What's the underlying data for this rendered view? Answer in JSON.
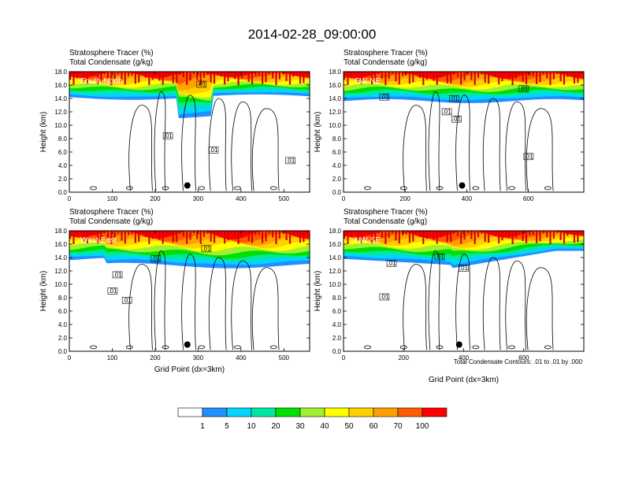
{
  "main_title": "2014-02-28_09:00:00",
  "colorbar": {
    "labels": [
      "1",
      "5",
      "10",
      "20",
      "30",
      "40",
      "50",
      "60",
      "70",
      "100"
    ],
    "colors": [
      "#ffffff",
      "#1e90ff",
      "#00d4ff",
      "#00e8a0",
      "#00e000",
      "#a0f030",
      "#ffff00",
      "#ffd000",
      "#ffa000",
      "#ff5a00",
      "#ff0000"
    ]
  },
  "contour_note": "Total Condensate Contours: .01 to .01 by .000",
  "chart_data": [
    {
      "type": "heatmap",
      "name_label": "South-North",
      "title_line1": "Stratosphere Tracer   (%)",
      "title_line2": "Total Condensate   (g/kg)",
      "ylabel": "Height (km)",
      "xlabel": "",
      "xlim": [
        0,
        560
      ],
      "ylim": [
        0,
        18
      ],
      "xticks": [
        "0",
        "100",
        "200",
        "300",
        "400",
        "500"
      ],
      "xtick_values": [
        0,
        100,
        200,
        300,
        400,
        500
      ],
      "yticks": [
        "0.0",
        "2.0",
        "4.0",
        "6.0",
        "8.0",
        "10.0",
        "12.0",
        "14.0",
        "16.0",
        "18.0"
      ],
      "contour_labels": [
        ".01",
        ".01",
        ".01",
        ".01"
      ],
      "contour_label_points": [
        [
          55,
          16
        ],
        [
          41,
          8.3
        ],
        [
          60,
          6.2
        ],
        [
          92,
          4.6
        ]
      ],
      "marker_point": [
        275,
        1.0
      ]
    },
    {
      "type": "heatmap",
      "name_label": "SW-NE",
      "title_line1": "Stratosphere Tracer   (%)",
      "title_line2": "Total Condensate   (g/kg)",
      "ylabel": "Height (km)",
      "xlabel": "",
      "xlim": [
        0,
        780
      ],
      "ylim": [
        0,
        18
      ],
      "xticks": [
        "0",
        "200",
        "400",
        "600"
      ],
      "xtick_values": [
        0,
        200,
        400,
        600
      ],
      "yticks": [
        "0.0",
        "2.0",
        "4.0",
        "6.0",
        "8.0",
        "10.0",
        "12.0",
        "14.0",
        "16.0",
        "18.0"
      ],
      "contour_labels": [
        ".01",
        ".01",
        ".01",
        ".01",
        ".01",
        ".01"
      ],
      "contour_label_points": [
        [
          17,
          14.1
        ],
        [
          46,
          13.8
        ],
        [
          43,
          11.9
        ],
        [
          47,
          10.8
        ],
        [
          75,
          15.3
        ],
        [
          77,
          5.2
        ]
      ],
      "marker_point": [
        385,
        1.0
      ]
    },
    {
      "type": "heatmap",
      "name_label": "West-East",
      "title_line1": "Stratosphere Tracer   (%)",
      "title_line2": "Total Condensate   (g/kg)",
      "ylabel": "Height (km)",
      "xlabel": "Grid Point (dx=3km)",
      "xlim": [
        0,
        560
      ],
      "ylim": [
        0,
        18
      ],
      "xticks": [
        "0",
        "100",
        "200",
        "300",
        "400",
        "500"
      ],
      "xtick_values": [
        0,
        100,
        200,
        300,
        400,
        500
      ],
      "yticks": [
        "0.0",
        "2.0",
        "4.0",
        "6.0",
        "8.0",
        "10.0",
        "12.0",
        "14.0",
        "16.0",
        "18.0"
      ],
      "contour_labels": [
        ".01",
        ".01",
        ".01",
        ".01",
        ".01"
      ],
      "contour_label_points": [
        [
          36,
          13.7
        ],
        [
          57,
          15.2
        ],
        [
          20,
          11.3
        ],
        [
          18,
          8.9
        ],
        [
          24,
          7.5
        ]
      ],
      "marker_point": [
        275,
        1.0
      ]
    },
    {
      "type": "heatmap",
      "name_label": "NW-SE",
      "title_line1": "Stratosphere Tracer   (%)",
      "title_line2": "Total Condensate   (g/kg)",
      "ylabel": "Height (km)",
      "xlabel": "Grid Point (dx=3km)",
      "xlim": [
        0,
        800
      ],
      "ylim": [
        0,
        18
      ],
      "xticks": [
        "0",
        "200",
        "400",
        "600"
      ],
      "xtick_values": [
        0,
        200,
        400,
        600
      ],
      "yticks": [
        "0.0",
        "2.0",
        "4.0",
        "6.0",
        "8.0",
        "10.0",
        "12.0",
        "14.0",
        "16.0",
        "18.0"
      ],
      "contour_labels": [
        ".01",
        ".01",
        ".01",
        ".01"
      ],
      "contour_label_points": [
        [
          40,
          14.0
        ],
        [
          50,
          12.3
        ],
        [
          20,
          13.0
        ],
        [
          17,
          8.0
        ]
      ],
      "marker_point": [
        385,
        1.0
      ]
    }
  ]
}
